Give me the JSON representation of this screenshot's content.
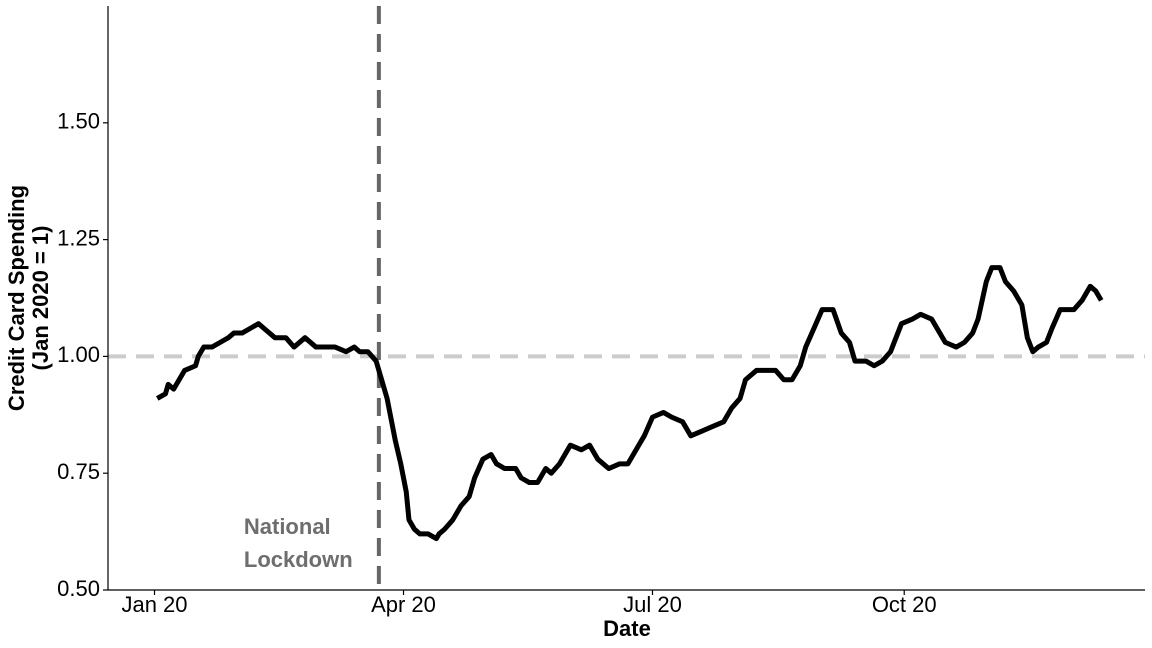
{
  "chart_data": {
    "type": "line",
    "x_label": "Date",
    "y_label": [
      "Credit Card Spending",
      "(Jan 2020 = 1)"
    ],
    "xlim": [
      -17,
      362
    ],
    "xticks": [
      {
        "value": 0,
        "label": "Jan 20"
      },
      {
        "value": 91,
        "label": "Apr 20"
      },
      {
        "value": 182,
        "label": "Jul 20"
      },
      {
        "value": 274,
        "label": "Oct 20"
      }
    ],
    "ylim": [
      0.5,
      1.75
    ],
    "yticks": [
      {
        "value": 0.5,
        "label": "0.50"
      },
      {
        "value": 0.75,
        "label": "0.75"
      },
      {
        "value": 1,
        "label": "1.00"
      },
      {
        "value": 1.25,
        "label": "1.25"
      },
      {
        "value": 1.5,
        "label": "1.50"
      }
    ],
    "grid": false,
    "reference_lines": {
      "hline": 1,
      "vline": 82
    },
    "annotation": [
      "National",
      "Lockdown"
    ],
    "series": [
      {
        "color": "#000000",
        "x": [
          1,
          4,
          5,
          7,
          9,
          11,
          15,
          16,
          18,
          21,
          24,
          27,
          29,
          32,
          35,
          38,
          40,
          44,
          48,
          51,
          55,
          59,
          62,
          66,
          70,
          73,
          75,
          78,
          81,
          83,
          85,
          88,
          90,
          92,
          93,
          95,
          97,
          100,
          103,
          104,
          106,
          109,
          112,
          115,
          117,
          120,
          123,
          125,
          128,
          132,
          134,
          137,
          140,
          143,
          145,
          148,
          152,
          156,
          159,
          162,
          166,
          170,
          173,
          177,
          179,
          182,
          186,
          189,
          193,
          196,
          200,
          204,
          208,
          211,
          214,
          216,
          220,
          223,
          227,
          230,
          233,
          236,
          238,
          241,
          244,
          248,
          251,
          254,
          256,
          260,
          263,
          266,
          269,
          273,
          277,
          280,
          284,
          287,
          289,
          293,
          296,
          299,
          301,
          304,
          306,
          309,
          311,
          314,
          317,
          319,
          321,
          323,
          326,
          328,
          331,
          333,
          336,
          339,
          342,
          344,
          346
        ],
        "values": [
          0.91,
          0.92,
          0.94,
          0.93,
          0.95,
          0.97,
          0.98,
          1.0,
          1.02,
          1.02,
          1.03,
          1.04,
          1.05,
          1.05,
          1.06,
          1.07,
          1.06,
          1.04,
          1.04,
          1.02,
          1.04,
          1.02,
          1.02,
          1.02,
          1.01,
          1.02,
          1.01,
          1.01,
          0.99,
          0.95,
          0.91,
          0.82,
          0.77,
          0.71,
          0.65,
          0.63,
          0.62,
          0.62,
          0.61,
          0.62,
          0.63,
          0.65,
          0.68,
          0.7,
          0.74,
          0.78,
          0.79,
          0.77,
          0.76,
          0.76,
          0.74,
          0.73,
          0.73,
          0.76,
          0.75,
          0.77,
          0.81,
          0.8,
          0.81,
          0.78,
          0.76,
          0.77,
          0.77,
          0.81,
          0.83,
          0.87,
          0.88,
          0.87,
          0.86,
          0.83,
          0.84,
          0.85,
          0.86,
          0.89,
          0.91,
          0.95,
          0.97,
          0.97,
          0.97,
          0.95,
          0.95,
          0.98,
          1.02,
          1.06,
          1.1,
          1.1,
          1.05,
          1.03,
          0.99,
          0.99,
          0.98,
          0.99,
          1.01,
          1.07,
          1.08,
          1.09,
          1.08,
          1.05,
          1.03,
          1.02,
          1.03,
          1.05,
          1.08,
          1.16,
          1.19,
          1.19,
          1.16,
          1.14,
          1.11,
          1.04,
          1.01,
          1.02,
          1.03,
          1.06,
          1.1,
          1.1,
          1.1,
          1.12,
          1.15,
          1.14,
          1.12
        ]
      }
    ]
  }
}
